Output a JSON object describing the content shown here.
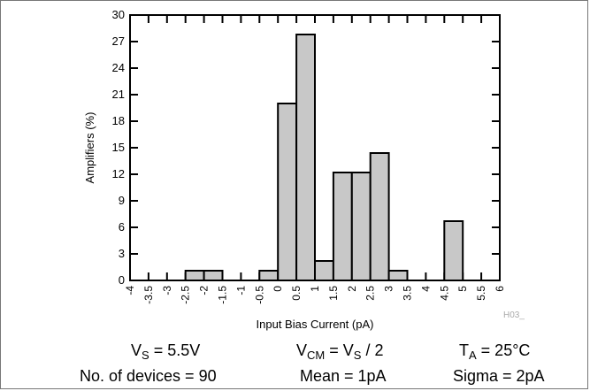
{
  "chart_data": {
    "type": "bar",
    "xlabel": "Input Bias Current (pA)",
    "ylabel": "Amplifiers (%)",
    "ylim": [
      0,
      30
    ],
    "yticks": [
      0,
      3,
      6,
      9,
      12,
      15,
      18,
      21,
      24,
      27,
      30
    ],
    "xlim": [
      -4,
      6
    ],
    "xtick_labels": [
      "-4",
      "-3.5",
      "-3",
      "-2.5",
      "-2",
      "-1.5",
      "-1",
      "-0.5",
      "0",
      "0.5",
      "1",
      "1.5",
      "2",
      "2.5",
      "3",
      "3.5",
      "4",
      "4.5",
      "5",
      "5.5",
      "6"
    ],
    "bin_width": 0.5,
    "bins": [
      {
        "x0": -2.5,
        "value": 1.1
      },
      {
        "x0": -2.0,
        "value": 1.1
      },
      {
        "x0": -0.5,
        "value": 1.1
      },
      {
        "x0": 0.0,
        "value": 20.0
      },
      {
        "x0": 0.5,
        "value": 27.8
      },
      {
        "x0": 1.0,
        "value": 2.2
      },
      {
        "x0": 1.5,
        "value": 12.2
      },
      {
        "x0": 2.0,
        "value": 12.2
      },
      {
        "x0": 2.5,
        "value": 14.4
      },
      {
        "x0": 3.0,
        "value": 1.1
      },
      {
        "x0": 4.5,
        "value": 6.7
      }
    ],
    "bar_color": "#c8c8c8",
    "annotation": "H03_"
  },
  "conditions": {
    "vs": {
      "main": "V",
      "sub": "S",
      "rest": " = 5.5V"
    },
    "vcm": {
      "main": "V",
      "sub": "CM",
      "mid": " = V",
      "sub2": "S",
      "rest": " / 2"
    },
    "ta": {
      "main": "T",
      "sub": "A",
      "rest": " = 25°C"
    },
    "devices": "No. of devices = 90",
    "mean": "Mean = 1pA",
    "sigma": "Sigma = 2pA"
  }
}
